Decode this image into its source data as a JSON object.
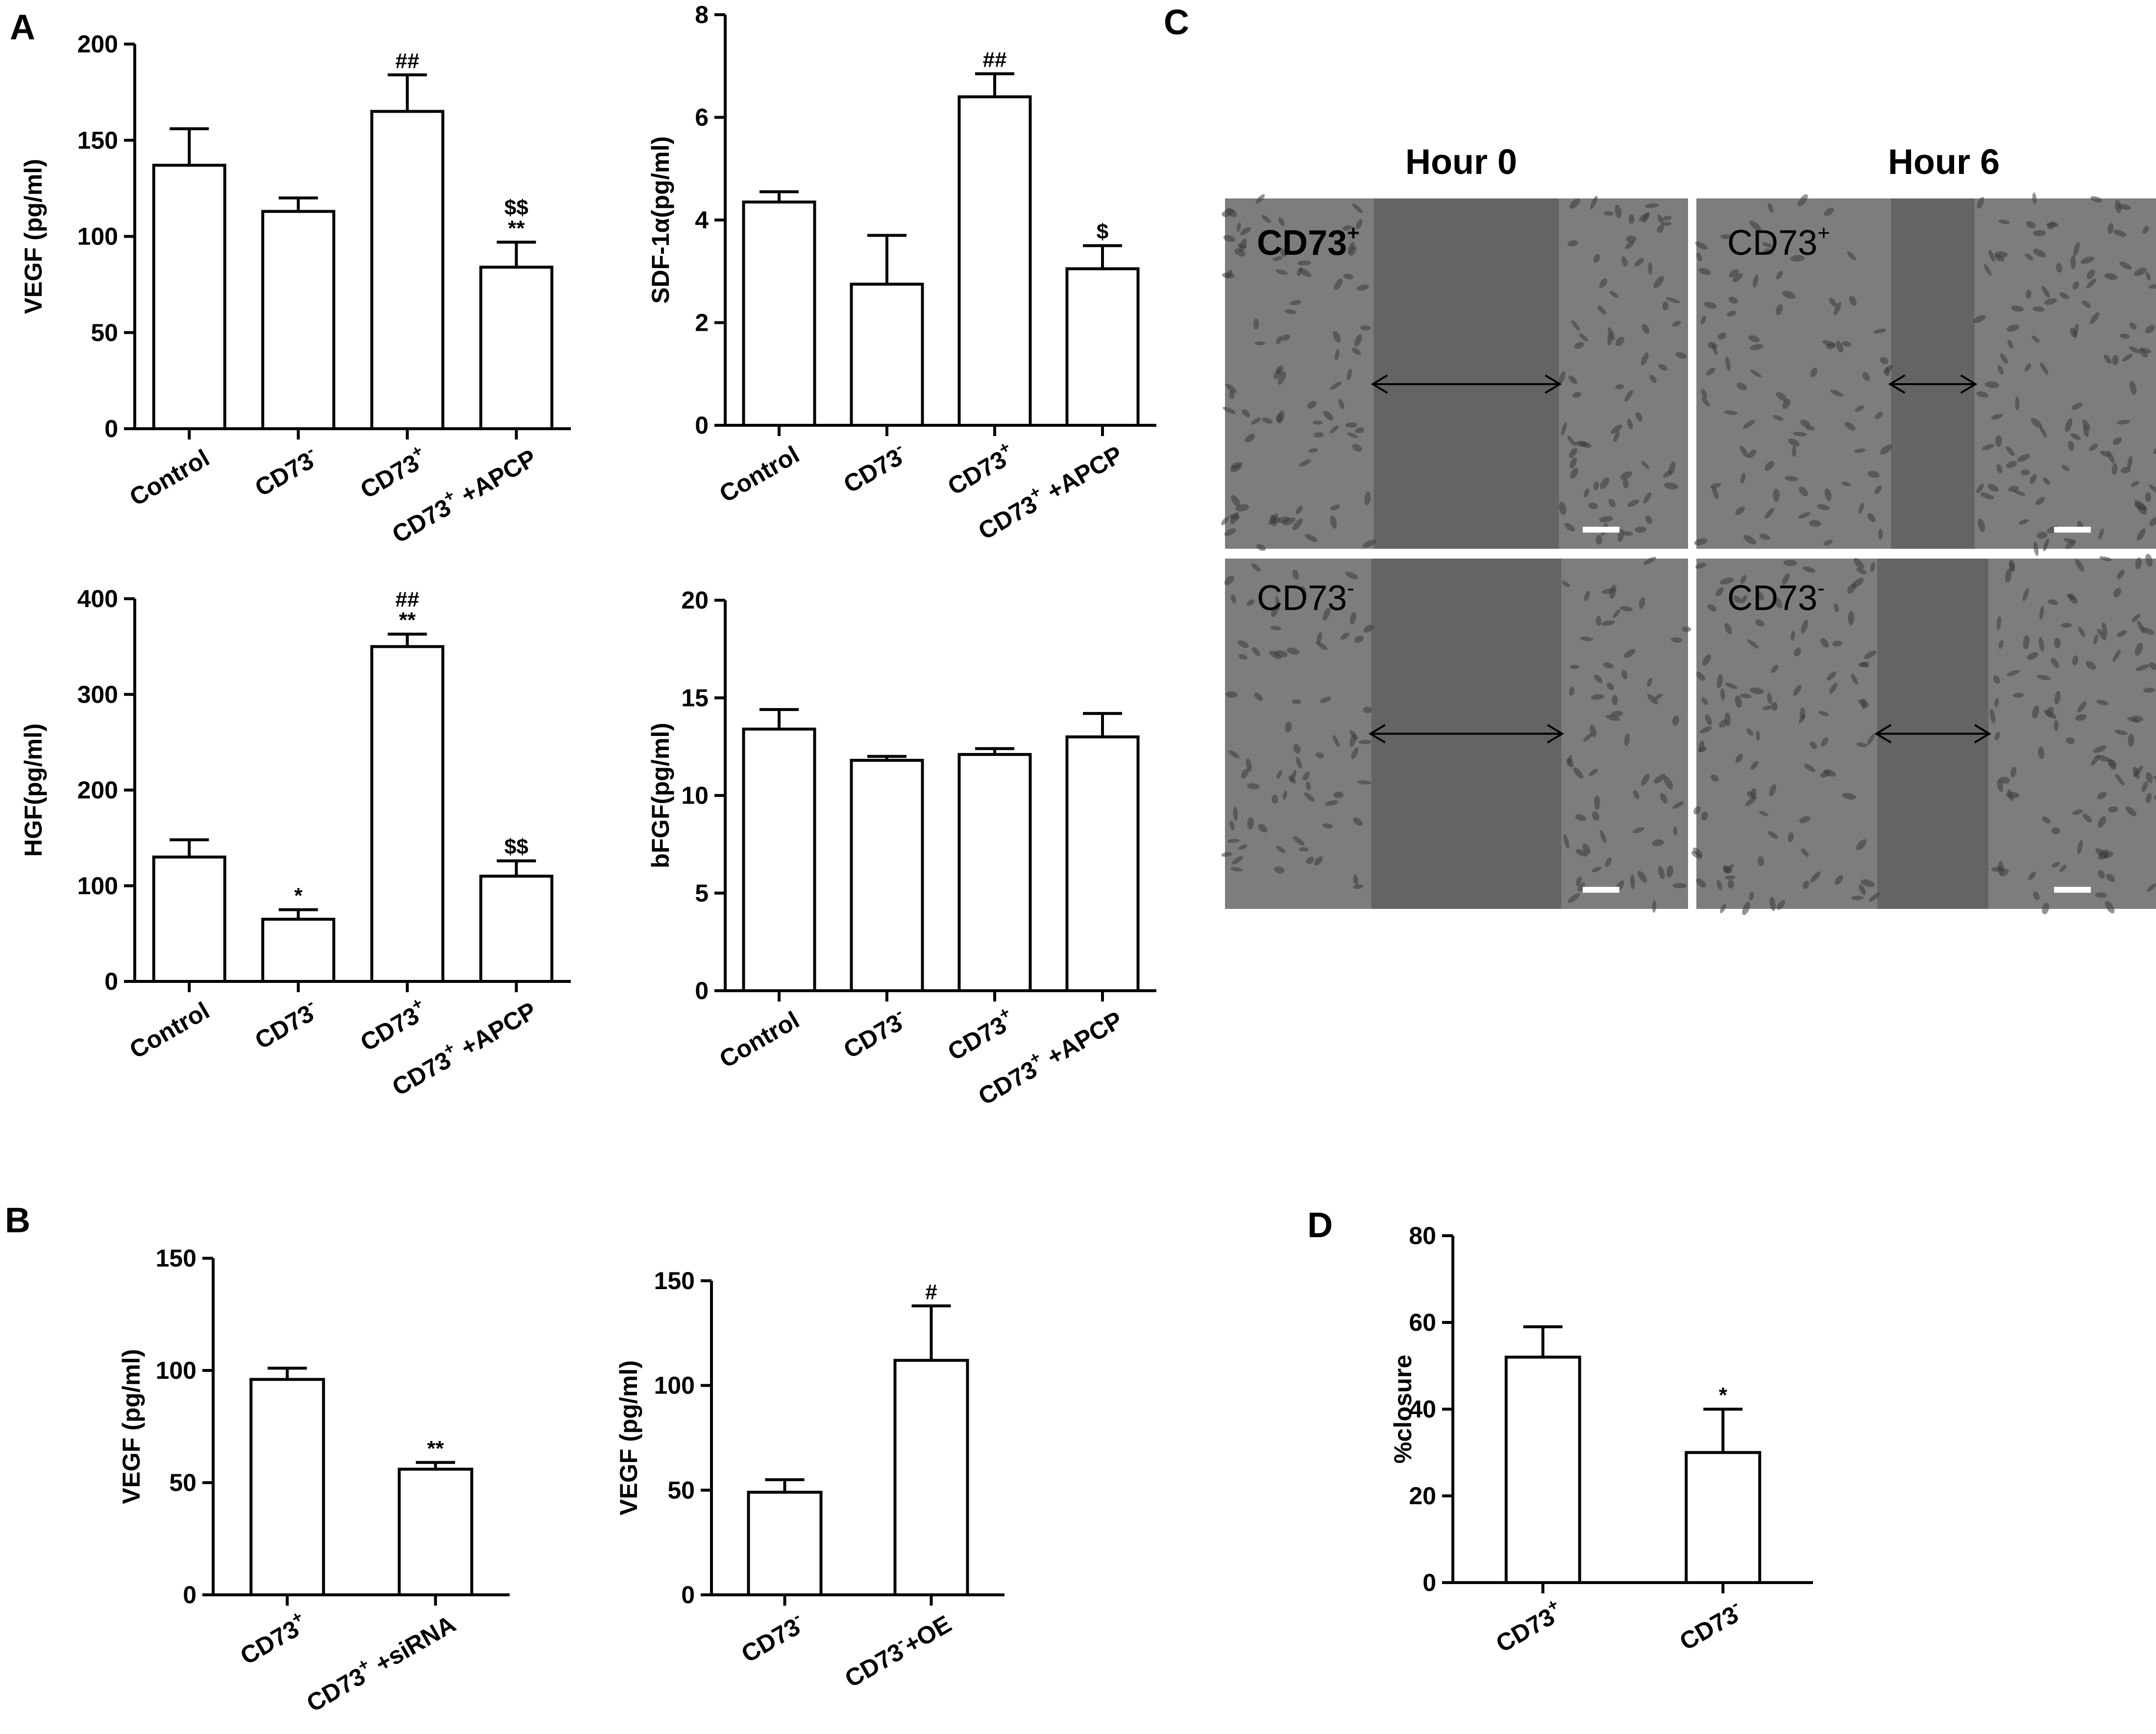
{
  "panel_letters": [
    "A",
    "B",
    "C",
    "D"
  ],
  "micrograph": {
    "col_titles": [
      "Hour 0",
      "Hour 6"
    ],
    "cells": [
      {
        "label": "CD73",
        "sup": "+",
        "bold": true
      },
      {
        "label": "CD73",
        "sup": "+",
        "bold": false
      },
      {
        "label": "CD73",
        "sup": "-",
        "bold": false
      },
      {
        "label": "CD73",
        "sup": "-",
        "bold": false
      }
    ],
    "gap_fraction": [
      0.4,
      0.18,
      0.41,
      0.24
    ],
    "colors": {
      "background": "#7d7d7d",
      "gap": "#646464",
      "cells": "#3c3c3c",
      "scale_bar": "#ffffff"
    }
  },
  "chart_data": [
    {
      "id": "A1",
      "panel": "A",
      "type": "bar",
      "ylabel": "VEGF (pg/ml)",
      "ylim": [
        0,
        200
      ],
      "yticks": [
        0,
        50,
        100,
        150,
        200
      ],
      "categories": [
        [
          "Control",
          "",
          ""
        ],
        [
          "CD73",
          "-",
          ""
        ],
        [
          "CD73",
          "+",
          ""
        ],
        [
          "CD73",
          "+",
          " +APCP"
        ]
      ],
      "values": [
        137,
        113,
        165,
        84
      ],
      "errors": [
        19,
        7,
        19,
        13
      ],
      "annotations": [
        "",
        "",
        "##",
        "$$\n**"
      ]
    },
    {
      "id": "A2",
      "panel": "A",
      "type": "bar",
      "ylabel": "SDF-1α(pg/ml)",
      "ylim": [
        0,
        8
      ],
      "yticks": [
        0,
        2,
        4,
        6,
        8
      ],
      "categories": [
        [
          "Control",
          "",
          ""
        ],
        [
          "CD73",
          "-",
          ""
        ],
        [
          "CD73",
          "+",
          ""
        ],
        [
          "CD73",
          "+",
          " +APCP"
        ]
      ],
      "values": [
        4.35,
        2.75,
        6.4,
        3.05
      ],
      "errors": [
        0.2,
        0.95,
        0.45,
        0.45
      ],
      "annotations": [
        "",
        "",
        "##",
        "$"
      ]
    },
    {
      "id": "A3",
      "panel": "A",
      "type": "bar",
      "ylabel": "HGF(pg/ml)",
      "ylim": [
        0,
        400
      ],
      "yticks": [
        0,
        100,
        200,
        300,
        400
      ],
      "categories": [
        [
          "Control",
          "",
          ""
        ],
        [
          "CD73",
          "-",
          ""
        ],
        [
          "CD73",
          "+",
          ""
        ],
        [
          "CD73",
          "+",
          " +APCP"
        ]
      ],
      "values": [
        130,
        65,
        350,
        110
      ],
      "errors": [
        18,
        10,
        13,
        16
      ],
      "annotations": [
        "",
        "*",
        "##\n**",
        "$$"
      ]
    },
    {
      "id": "A4",
      "panel": "A",
      "type": "bar",
      "ylabel": "bFGF(pg/ml)",
      "ylim": [
        0,
        20
      ],
      "yticks": [
        0,
        5,
        10,
        15,
        20
      ],
      "categories": [
        [
          "Control",
          "",
          ""
        ],
        [
          "CD73",
          "-",
          ""
        ],
        [
          "CD73",
          "+",
          ""
        ],
        [
          "CD73",
          "+",
          " +APCP"
        ]
      ],
      "values": [
        13.4,
        11.8,
        12.1,
        13.0
      ],
      "errors": [
        1.0,
        0.2,
        0.3,
        1.2
      ],
      "annotations": [
        "",
        "",
        "",
        ""
      ]
    },
    {
      "id": "B1",
      "panel": "B",
      "type": "bar",
      "ylabel": "VEGF (pg/ml)",
      "ylim": [
        0,
        150
      ],
      "yticks": [
        0,
        50,
        100,
        150
      ],
      "categories": [
        [
          "CD73",
          "+",
          ""
        ],
        [
          "CD73",
          "+",
          " +siRNA"
        ]
      ],
      "values": [
        96,
        56
      ],
      "errors": [
        5,
        3
      ],
      "annotations": [
        "",
        "**"
      ]
    },
    {
      "id": "B2",
      "panel": "B",
      "type": "bar",
      "ylabel": "VEGF (pg/ml)",
      "ylim": [
        0,
        150
      ],
      "yticks": [
        0,
        50,
        100,
        150
      ],
      "categories": [
        [
          "CD73",
          "-",
          ""
        ],
        [
          "CD73",
          "-",
          "+OE"
        ]
      ],
      "values": [
        49,
        112
      ],
      "errors": [
        6,
        26
      ],
      "annotations": [
        "",
        "#"
      ]
    },
    {
      "id": "D",
      "panel": "D",
      "type": "bar",
      "ylabel": "%closure",
      "ylim": [
        0,
        80
      ],
      "yticks": [
        0,
        20,
        40,
        60,
        80
      ],
      "categories": [
        [
          "CD73",
          "+",
          ""
        ],
        [
          "CD73",
          "-",
          ""
        ]
      ],
      "values": [
        52,
        30
      ],
      "errors": [
        7,
        10
      ],
      "annotations": [
        "",
        "*"
      ]
    }
  ]
}
